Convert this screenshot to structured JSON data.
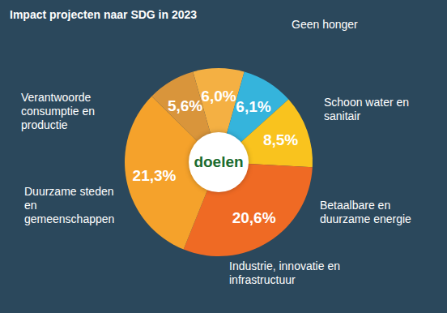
{
  "chart_data": {
    "type": "pie",
    "title": "Impact projecten naar SDG in 2023",
    "annotations": [
      "doelen"
    ],
    "categories": [
      "Geen honger",
      "Schoon water en sanitair",
      "Betaalbare en duurzame energie",
      "Industrie, innovatie en infrastructuur",
      "Duurzame steden en gemeenschappen",
      "Verantwoorde consumptie en productie"
    ],
    "values": [
      6.0,
      6.1,
      8.5,
      20.6,
      21.3,
      5.6
    ],
    "value_labels": [
      "6,0%",
      "6,1%",
      "8,5%",
      "20,6%",
      "21,3%",
      "5,6%"
    ],
    "colors": [
      "#f4b043",
      "#35b4dc",
      "#f9c31e",
      "#ef6a24",
      "#f5a22b",
      "#d9953b"
    ],
    "data_labels": true
  }
}
